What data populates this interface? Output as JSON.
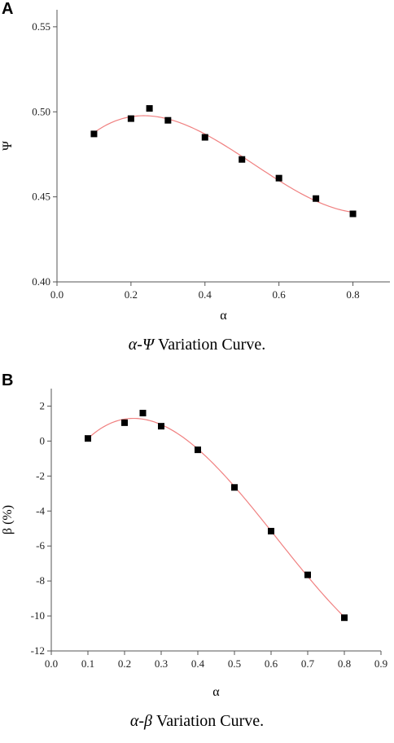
{
  "charts": [
    {
      "panel_label": "A",
      "caption_symbol": "α-Ψ",
      "caption_text": " Variation Curve.",
      "chart_data": {
        "type": "scatter",
        "xlabel": "α",
        "ylabel": "Ψ",
        "xlim": [
          0.0,
          0.9
        ],
        "ylim": [
          0.4,
          0.56
        ],
        "xticks": [
          0.0,
          0.2,
          0.4,
          0.6,
          0.8
        ],
        "xtick_labels": [
          "0.0",
          "0.2",
          "0.4",
          "0.6",
          "0.8"
        ],
        "yticks": [
          0.4,
          0.45,
          0.5,
          0.55
        ],
        "ytick_labels": [
          "0.40",
          "0.45",
          "0.50",
          "0.55"
        ],
        "x": [
          0.1,
          0.2,
          0.25,
          0.3,
          0.4,
          0.5,
          0.6,
          0.7,
          0.8
        ],
        "y": [
          0.487,
          0.496,
          0.502,
          0.495,
          0.485,
          0.472,
          0.461,
          0.449,
          0.44
        ],
        "fit_curve": true,
        "colors": {
          "points": "#000000",
          "curve": "#f08080"
        }
      }
    },
    {
      "panel_label": "B",
      "caption_symbol": "α-β",
      "caption_text": " Variation Curve.",
      "chart_data": {
        "type": "scatter",
        "xlabel": "α",
        "ylabel": "β (%)",
        "xlim": [
          0.0,
          0.9
        ],
        "ylim": [
          -12,
          3
        ],
        "xticks": [
          0.0,
          0.1,
          0.2,
          0.3,
          0.4,
          0.5,
          0.6,
          0.7,
          0.8,
          0.9
        ],
        "xtick_labels": [
          "0.0",
          "0.1",
          "0.2",
          "0.3",
          "0.4",
          "0.5",
          "0.6",
          "0.7",
          "0.8",
          "0.9"
        ],
        "yticks": [
          -12,
          -10,
          -8,
          -6,
          -4,
          -2,
          0,
          2
        ],
        "ytick_labels": [
          "-12",
          "-10",
          "-8",
          "-6",
          "-4",
          "-2",
          "0",
          "2"
        ],
        "x": [
          0.1,
          0.2,
          0.25,
          0.3,
          0.4,
          0.5,
          0.6,
          0.7,
          0.8
        ],
        "y": [
          0.15,
          1.05,
          1.6,
          0.85,
          -0.5,
          -2.65,
          -5.15,
          -7.65,
          -10.1
        ],
        "fit_curve": true,
        "colors": {
          "points": "#000000",
          "curve": "#f08080"
        }
      }
    }
  ]
}
